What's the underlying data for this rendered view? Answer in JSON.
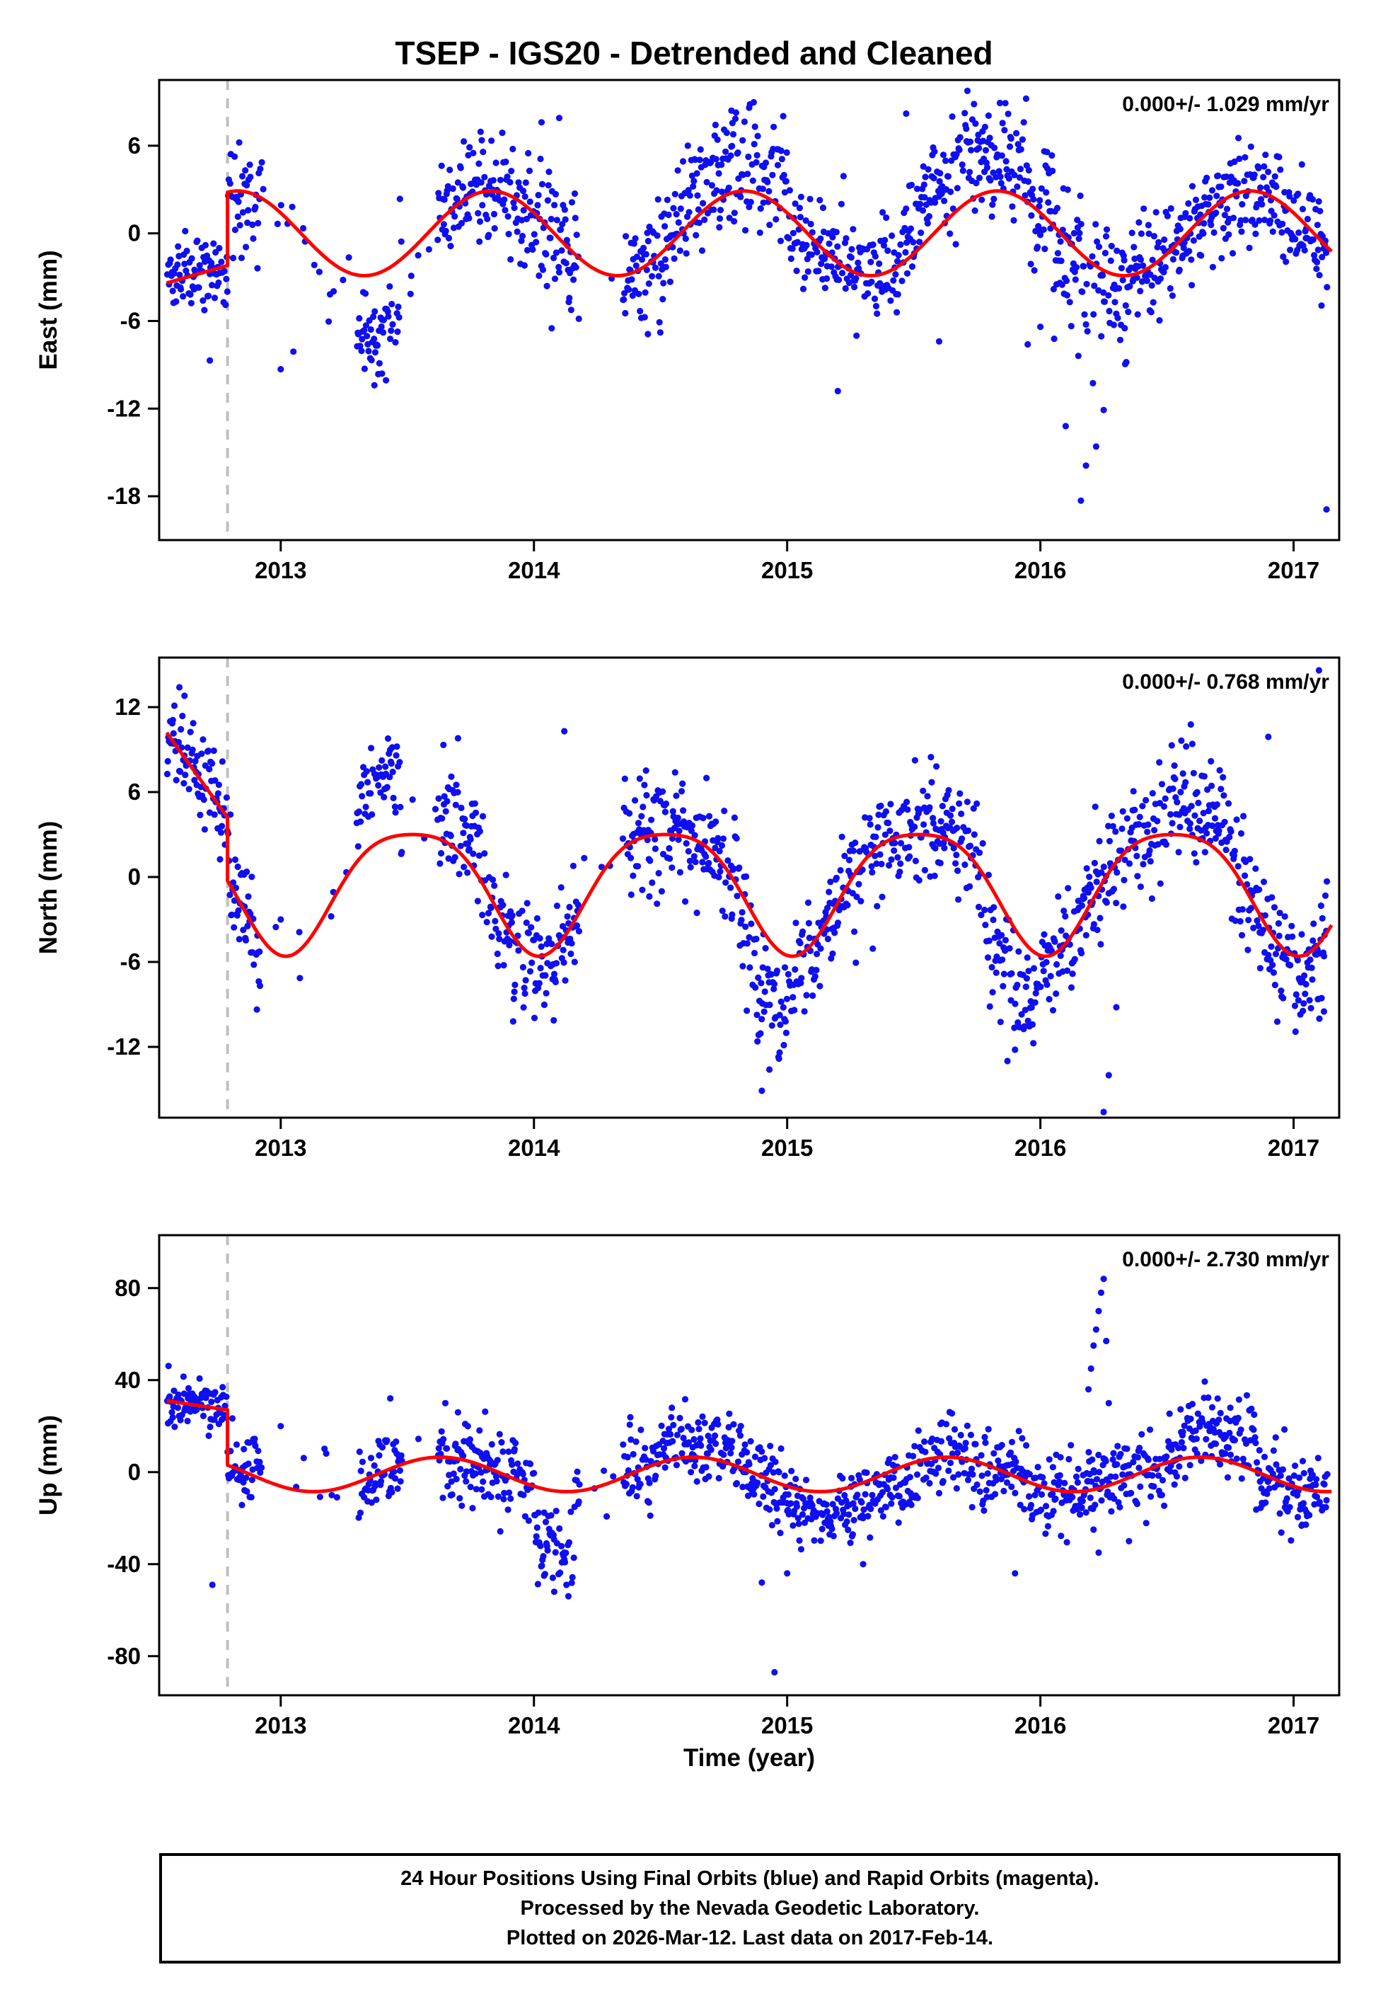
{
  "title": "TSEP - IGS20 - Detrended and Cleaned",
  "xlabel": "Time (year)",
  "footer": {
    "line1": "24 Hour Positions Using Final Orbits (blue) and Rapid Orbits (magenta).",
    "line2": "Processed by the Nevada Geodetic Laboratory.",
    "line3": "Plotted on 2026-Mar-12. Last data on 2017-Feb-14."
  },
  "colors": {
    "points": "#0f0fef",
    "model": "#ff0000",
    "event_line": "#bfbfbf",
    "frame": "#000000",
    "text": "#000000"
  },
  "chart_data": [
    {
      "type": "scatter",
      "name": "east",
      "ylabel": "East (mm)",
      "annotation": "0.000+/- 1.029 mm/yr",
      "xlim": [
        2012.52,
        2017.18
      ],
      "ylim": [
        -21.0,
        10.5
      ],
      "yticks": [
        -18,
        -12,
        -6,
        0,
        6
      ],
      "xticks": [
        2013,
        2014,
        2015,
        2016,
        2017
      ],
      "event_x": 2012.79,
      "model": {
        "pre": [
          [
            2012.55,
            -3.4
          ],
          [
            2012.79,
            -2.2
          ]
        ],
        "mean": 0.0,
        "amp1": 2.9,
        "phase1": 0.83,
        "amp2": 0.0,
        "phase2": 0.0,
        "start": 2012.79,
        "end": 2017.15
      },
      "scatter": {
        "start": 2012.55,
        "end": 2017.13,
        "sigma": 1.9,
        "pre_sigma": 1.3,
        "amp_factor": 1.0,
        "gaps": [
          [
            2012.92,
            2013.3
          ],
          [
            2013.48,
            2013.62
          ],
          [
            2014.18,
            2014.35
          ]
        ],
        "clusters": [
          {
            "t0": 2013.3,
            "t1": 2013.47,
            "dy": -4.5,
            "sigma": 1.5
          },
          {
            "t0": 2014.55,
            "t1": 2015.0,
            "dy": 1.8,
            "sigma": 2.2
          },
          {
            "t0": 2015.45,
            "t1": 2015.95,
            "dy": 2.2,
            "sigma": 2.0
          },
          {
            "t0": 2016.05,
            "t1": 2016.35,
            "dy": -1.5,
            "sigma": 2.8
          },
          {
            "t0": 2013.63,
            "t1": 2013.8,
            "dy": 0.8,
            "sigma": 1.6
          }
        ],
        "outliers": [
          [
            2012.72,
            -8.7
          ],
          [
            2013.0,
            -9.3
          ],
          [
            2013.05,
            -8.1
          ],
          [
            2013.37,
            -10.4
          ],
          [
            2013.4,
            -9.6
          ],
          [
            2014.03,
            7.6
          ],
          [
            2014.1,
            7.9
          ],
          [
            2014.07,
            -6.5
          ],
          [
            2014.45,
            -6.9
          ],
          [
            2015.2,
            -10.8
          ],
          [
            2015.6,
            -7.4
          ],
          [
            2015.95,
            -7.6
          ],
          [
            2016.0,
            -6.4
          ],
          [
            2016.1,
            -13.2
          ],
          [
            2016.16,
            -18.3
          ],
          [
            2016.18,
            -15.9
          ],
          [
            2016.22,
            -14.6
          ],
          [
            2016.25,
            -12.1
          ],
          [
            2017.13,
            -18.9
          ],
          [
            2015.47,
            8.2
          ],
          [
            2014.78,
            8.4
          ],
          [
            2014.85,
            8.6
          ]
        ]
      }
    },
    {
      "type": "scatter",
      "name": "north",
      "ylabel": "North (mm)",
      "annotation": "0.000+/- 0.768 mm/yr",
      "xlim": [
        2012.52,
        2017.18
      ],
      "ylim": [
        -17.0,
        15.5
      ],
      "yticks": [
        -12,
        -6,
        0,
        6,
        12
      ],
      "xticks": [
        2013,
        2014,
        2015,
        2016,
        2017
      ],
      "event_x": 2012.79,
      "model": {
        "pre": [
          [
            2012.55,
            10.2
          ],
          [
            2012.79,
            4.2
          ]
        ],
        "mean": -0.5,
        "amp1": 4.3,
        "phase1": 0.52,
        "amp2": 0.8,
        "phase2": 0.27,
        "start": 2012.79,
        "end": 2017.15
      },
      "scatter": {
        "start": 2012.55,
        "end": 2017.13,
        "sigma": 2.0,
        "pre_sigma": 1.5,
        "amp_factor": 1.15,
        "gaps": [
          [
            2012.92,
            2013.3
          ],
          [
            2013.48,
            2013.62
          ],
          [
            2014.18,
            2014.35
          ]
        ],
        "clusters": [
          {
            "t0": 2013.3,
            "t1": 2013.47,
            "dy": 3.5,
            "sigma": 1.5
          },
          {
            "t0": 2014.82,
            "t1": 2015.02,
            "dy": -3.0,
            "sigma": 2.3
          },
          {
            "t0": 2015.78,
            "t1": 2015.98,
            "dy": -3.5,
            "sigma": 2.0
          },
          {
            "t0": 2016.5,
            "t1": 2016.78,
            "dy": 2.0,
            "sigma": 1.9
          },
          {
            "t0": 2013.63,
            "t1": 2013.8,
            "dy": 1.5,
            "sigma": 1.8
          }
        ],
        "outliers": [
          [
            2012.6,
            13.4
          ],
          [
            2012.62,
            12.8
          ],
          [
            2012.58,
            12.1
          ],
          [
            2013.7,
            9.8
          ],
          [
            2014.12,
            10.3
          ],
          [
            2013.0,
            -3.0
          ],
          [
            2014.9,
            -15.1
          ],
          [
            2014.93,
            -13.6
          ],
          [
            2014.97,
            -12.4
          ],
          [
            2015.87,
            -13.0
          ],
          [
            2015.9,
            -12.2
          ],
          [
            2016.25,
            -16.6
          ],
          [
            2016.27,
            -14.0
          ],
          [
            2016.3,
            -9.2
          ],
          [
            2017.1,
            14.6
          ],
          [
            2017.12,
            -9.5
          ],
          [
            2016.9,
            9.9
          ],
          [
            2016.6,
            9.4
          ]
        ]
      }
    },
    {
      "type": "scatter",
      "name": "up",
      "ylabel": "Up (mm)",
      "annotation": "0.000+/- 2.730 mm/yr",
      "xlim": [
        2012.52,
        2017.18
      ],
      "ylim": [
        -97,
        103
      ],
      "yticks": [
        -80,
        -40,
        0,
        40,
        80
      ],
      "xticks": [
        2013,
        2014,
        2015,
        2016,
        2017
      ],
      "event_x": 2012.79,
      "model": {
        "pre": [
          [
            2012.55,
            31.0
          ],
          [
            2012.79,
            27.0
          ]
        ],
        "mean": -1.0,
        "amp1": 7.5,
        "phase1": 0.63,
        "amp2": 0.0,
        "phase2": 0.0,
        "start": 2012.79,
        "end": 2017.15
      },
      "scatter": {
        "start": 2012.55,
        "end": 2017.13,
        "sigma": 9.0,
        "pre_sigma": 5.0,
        "amp_factor": 1.0,
        "gaps": [
          [
            2012.92,
            2013.3
          ],
          [
            2013.48,
            2013.62
          ],
          [
            2014.18,
            2014.35
          ]
        ],
        "clusters": [
          {
            "t0": 2014.0,
            "t1": 2014.16,
            "dy": -22,
            "sigma": 10
          },
          {
            "t0": 2015.02,
            "t1": 2015.5,
            "dy": -9,
            "sigma": 7
          },
          {
            "t0": 2016.55,
            "t1": 2016.85,
            "dy": 12,
            "sigma": 8
          },
          {
            "t0": 2014.5,
            "t1": 2014.78,
            "dy": 4,
            "sigma": 8
          }
        ],
        "outliers": [
          [
            2012.73,
            -49
          ],
          [
            2013.0,
            20
          ],
          [
            2014.04,
            -45
          ],
          [
            2014.08,
            -52
          ],
          [
            2014.12,
            -38
          ],
          [
            2014.9,
            -48
          ],
          [
            2014.95,
            -87
          ],
          [
            2015.0,
            -44
          ],
          [
            2015.3,
            -40
          ],
          [
            2015.9,
            -44
          ],
          [
            2016.19,
            36
          ],
          [
            2016.2,
            45
          ],
          [
            2016.21,
            55
          ],
          [
            2016.22,
            62
          ],
          [
            2016.23,
            70
          ],
          [
            2016.24,
            78
          ],
          [
            2016.25,
            84
          ],
          [
            2016.26,
            57
          ],
          [
            2016.27,
            30
          ],
          [
            2016.21,
            -25
          ],
          [
            2016.23,
            -35
          ],
          [
            2016.35,
            -30
          ],
          [
            2013.65,
            30
          ],
          [
            2013.7,
            26
          ],
          [
            2016.7,
            32
          ],
          [
            2016.75,
            28
          ]
        ]
      }
    }
  ]
}
